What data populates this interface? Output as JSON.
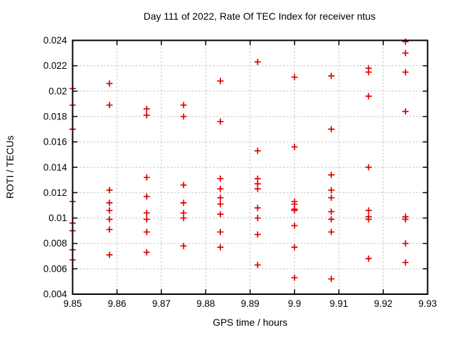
{
  "title": "Day 111 of 2022, Rate Of TEC Index for receiver ntus",
  "chart_data": {
    "type": "scatter",
    "title": "Day 111 of 2022, Rate Of TEC Index for receiver ntus",
    "xlabel": "GPS time / hours",
    "ylabel": "ROTI / TECUs",
    "xlim": [
      9.85,
      9.93
    ],
    "ylim": [
      0.004,
      0.024
    ],
    "xtick_values": [
      9.85,
      9.86,
      9.87,
      9.88,
      9.89,
      9.9,
      9.91,
      9.92,
      9.93
    ],
    "xtick_labels": [
      "9.85",
      "9.86",
      "9.87",
      "9.88",
      "9.89",
      "9.9",
      "9.91",
      "9.92",
      "9.93"
    ],
    "ytick_values": [
      0.004,
      0.006,
      0.008,
      0.01,
      0.012,
      0.014,
      0.016,
      0.018,
      0.02,
      0.022,
      0.024
    ],
    "ytick_labels": [
      "0.004",
      "0.006",
      "0.008",
      "0.01",
      "0.012",
      "0.014",
      "0.016",
      "0.018",
      "0.02",
      "0.022",
      "0.024"
    ],
    "grid": true,
    "legend": "none",
    "marker": "plus",
    "colors": {
      "marker": "#e00000",
      "grid": "#b5b5b5",
      "axis": "#000000",
      "text": "#000000",
      "background": "#ffffff"
    },
    "series": [
      {
        "name": "ROTI",
        "points": [
          [
            9.85,
            0.0202
          ],
          [
            9.85,
            0.0189
          ],
          [
            9.85,
            0.017
          ],
          [
            9.85,
            0.0113
          ],
          [
            9.85,
            0.0096
          ],
          [
            9.85,
            0.009
          ],
          [
            9.85,
            0.0075
          ],
          [
            9.85,
            0.0067
          ],
          [
            9.8583,
            0.0206
          ],
          [
            9.8583,
            0.0189
          ],
          [
            9.8583,
            0.0122
          ],
          [
            9.8583,
            0.0112
          ],
          [
            9.8583,
            0.0106
          ],
          [
            9.8583,
            0.0099
          ],
          [
            9.8583,
            0.0091
          ],
          [
            9.8583,
            0.0071
          ],
          [
            9.8667,
            0.0186
          ],
          [
            9.8667,
            0.0181
          ],
          [
            9.8667,
            0.0132
          ],
          [
            9.8667,
            0.0117
          ],
          [
            9.8667,
            0.0104
          ],
          [
            9.8667,
            0.0099
          ],
          [
            9.8667,
            0.0089
          ],
          [
            9.8667,
            0.0073
          ],
          [
            9.875,
            0.0189
          ],
          [
            9.875,
            0.018
          ],
          [
            9.875,
            0.0126
          ],
          [
            9.875,
            0.0112
          ],
          [
            9.875,
            0.0104
          ],
          [
            9.875,
            0.01
          ],
          [
            9.875,
            0.0078
          ],
          [
            9.8833,
            0.0208
          ],
          [
            9.8833,
            0.0176
          ],
          [
            9.8833,
            0.0131
          ],
          [
            9.8833,
            0.0123
          ],
          [
            9.8833,
            0.0116
          ],
          [
            9.8833,
            0.0111
          ],
          [
            9.8833,
            0.0103
          ],
          [
            9.8833,
            0.0089
          ],
          [
            9.8833,
            0.0077
          ],
          [
            9.8917,
            0.0223
          ],
          [
            9.8917,
            0.0153
          ],
          [
            9.8917,
            0.0131
          ],
          [
            9.8917,
            0.0127
          ],
          [
            9.8917,
            0.0123
          ],
          [
            9.8917,
            0.0108
          ],
          [
            9.8917,
            0.01
          ],
          [
            9.8917,
            0.0087
          ],
          [
            9.8917,
            0.0063
          ],
          [
            9.9,
            0.0211
          ],
          [
            9.9,
            0.0156
          ],
          [
            9.9,
            0.0113
          ],
          [
            9.9,
            0.0111
          ],
          [
            9.9,
            0.0107
          ],
          [
            9.9,
            0.0106
          ],
          [
            9.9,
            0.0094
          ],
          [
            9.9,
            0.0077
          ],
          [
            9.9,
            0.0053
          ],
          [
            9.9083,
            0.0212
          ],
          [
            9.9083,
            0.017
          ],
          [
            9.9083,
            0.0134
          ],
          [
            9.9083,
            0.0122
          ],
          [
            9.9083,
            0.0116
          ],
          [
            9.9083,
            0.0105
          ],
          [
            9.9083,
            0.0099
          ],
          [
            9.9083,
            0.0089
          ],
          [
            9.9083,
            0.0052
          ],
          [
            9.9167,
            0.0218
          ],
          [
            9.9167,
            0.0215
          ],
          [
            9.9167,
            0.0196
          ],
          [
            9.9167,
            0.014
          ],
          [
            9.9167,
            0.0106
          ],
          [
            9.9167,
            0.0101
          ],
          [
            9.9167,
            0.0099
          ],
          [
            9.9167,
            0.0068
          ],
          [
            9.925,
            0.0239
          ],
          [
            9.925,
            0.023
          ],
          [
            9.925,
            0.0215
          ],
          [
            9.925,
            0.0184
          ],
          [
            9.925,
            0.0101
          ],
          [
            9.925,
            0.0099
          ],
          [
            9.925,
            0.008
          ],
          [
            9.925,
            0.0065
          ]
        ]
      }
    ]
  }
}
